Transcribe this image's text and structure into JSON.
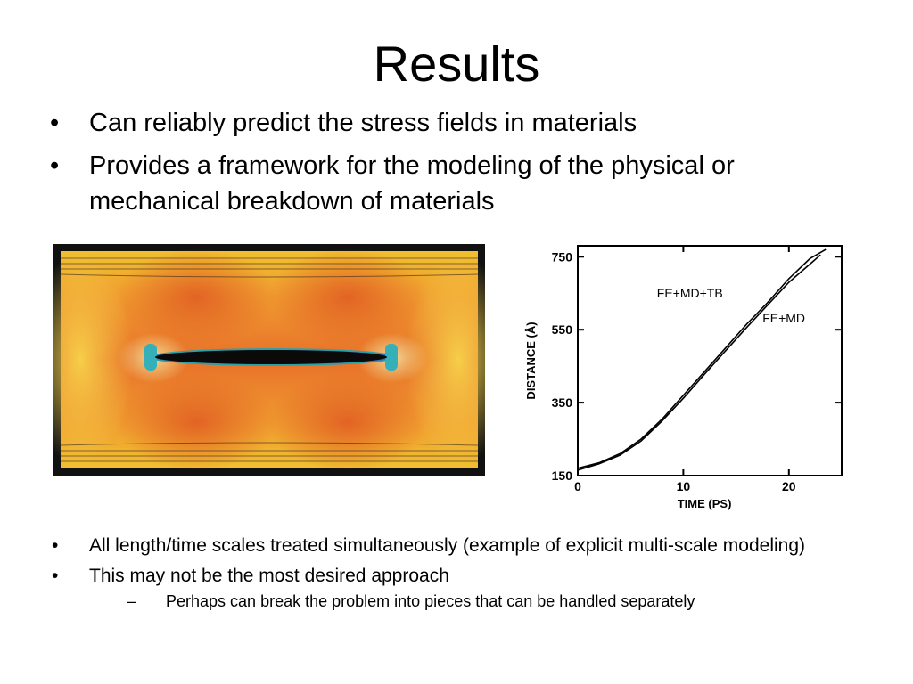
{
  "slide": {
    "title": "Results",
    "bullet_char": "•",
    "sub_bullet_char": "–",
    "top_bullets": [
      "Can reliably predict the stress fields in materials",
      "Provides a framework for the modeling of the physical or mechanical breakdown of materials"
    ],
    "bottom_bullets": [
      "All length/time scales treated simultaneously (example of explicit multi-scale modeling)",
      "This may not be the most desired approach"
    ],
    "sub_bullets": [
      "Perhaps can break the problem into pieces that can be handled separately"
    ]
  },
  "chart_data": {
    "type": "line",
    "xlabel": "TIME (PS)",
    "ylabel": "DISTANCE (Å)",
    "x_ticks": [
      0,
      10,
      20
    ],
    "y_ticks": [
      150,
      350,
      550,
      750
    ],
    "xlim": [
      0,
      25
    ],
    "ylim": [
      150,
      780
    ],
    "series": [
      {
        "name": "FE+MD+TB",
        "x": [
          0,
          2,
          4,
          6,
          8,
          10,
          12,
          14,
          16,
          18,
          20,
          22,
          23.5
        ],
        "y": [
          170,
          185,
          210,
          250,
          305,
          370,
          435,
          500,
          565,
          625,
          690,
          745,
          770
        ]
      },
      {
        "name": "FE+MD",
        "x": [
          0,
          2,
          4,
          6,
          8,
          10,
          12,
          14,
          16,
          18,
          20,
          22,
          23
        ],
        "y": [
          165,
          182,
          206,
          245,
          300,
          362,
          428,
          492,
          556,
          618,
          680,
          730,
          755
        ]
      }
    ],
    "annotations": [
      "FE+MD+TB",
      "FE+MD"
    ]
  }
}
